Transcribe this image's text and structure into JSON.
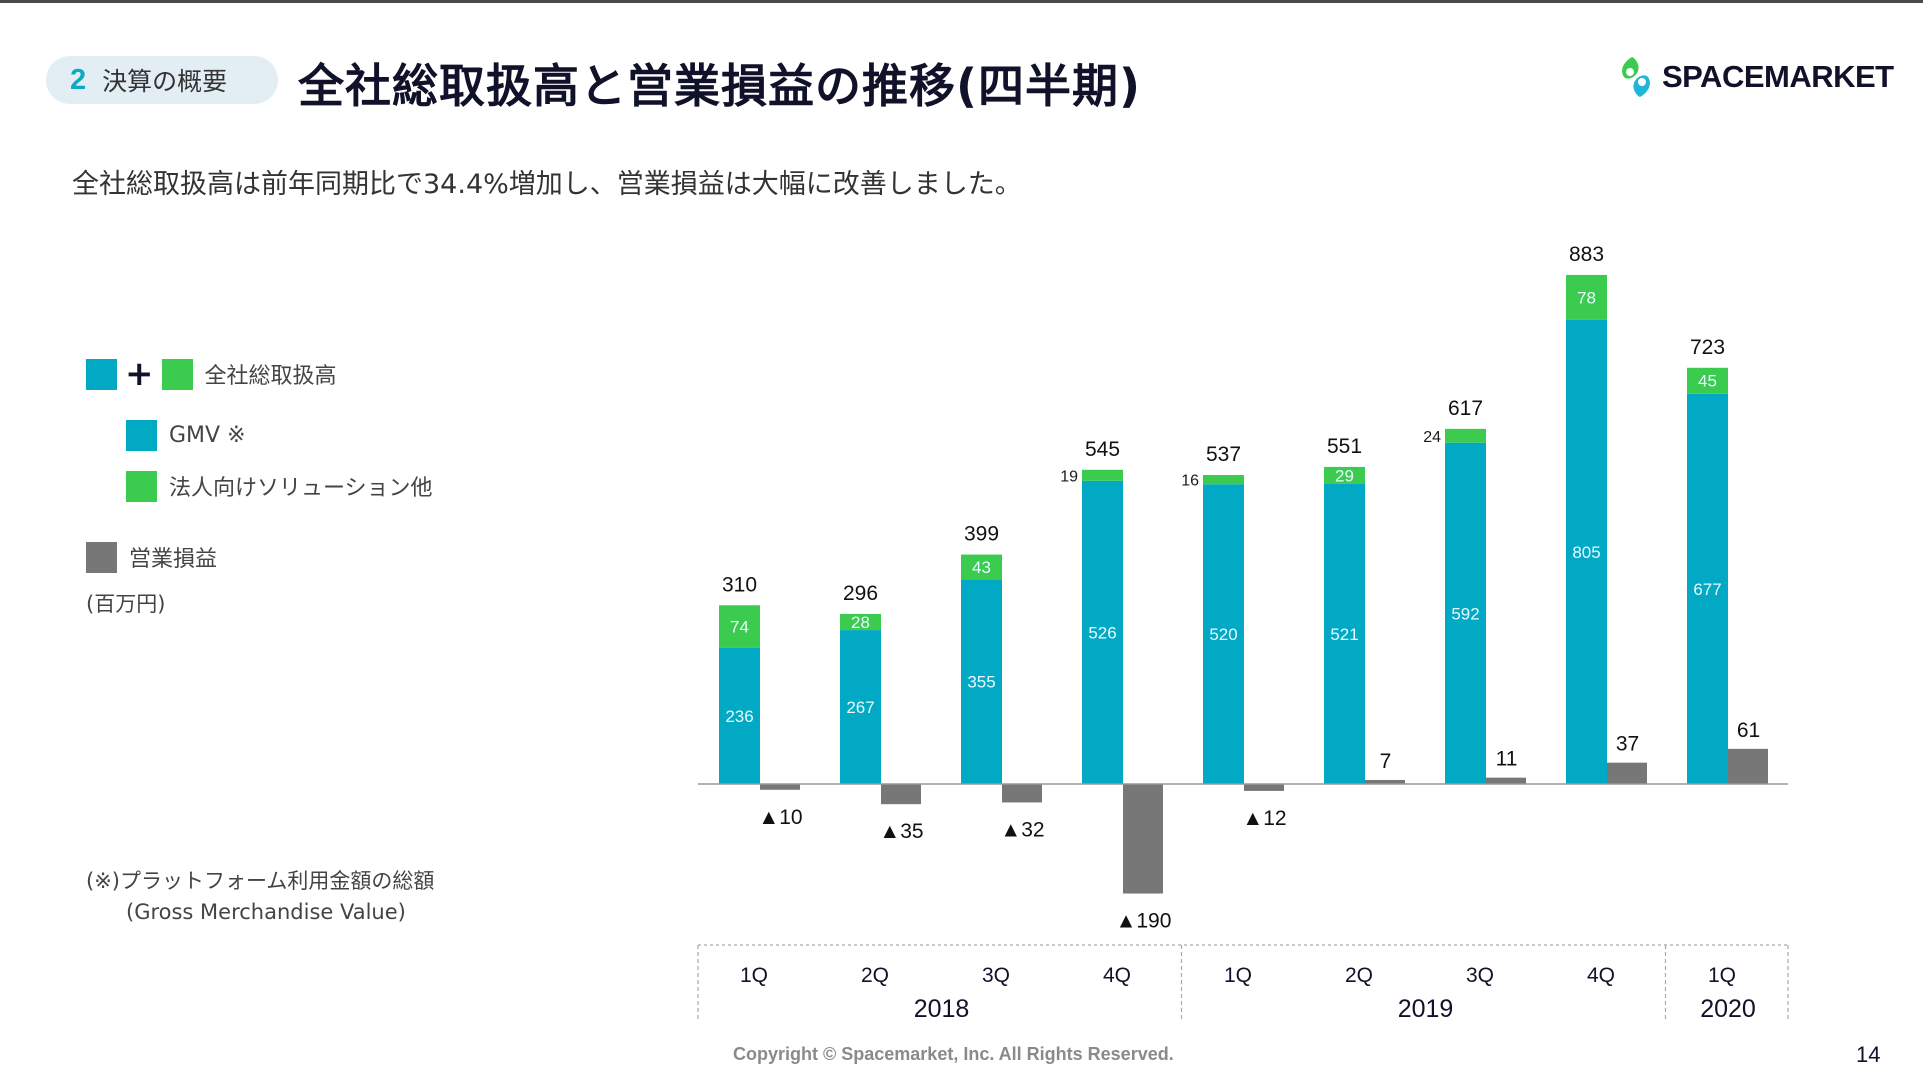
{
  "header": {
    "section_number": "2",
    "section_label": "決算の概要",
    "title": "全社総取扱高と営業損益の推移(四半期)",
    "logo_text": "SPACEMARKET",
    "logo_icon": "spacemarket-logo-icon"
  },
  "subtitle": "全社総取扱高は前年同期比で34.4%増加し、営業損益は大幅に改善しました。",
  "legend": {
    "plus": "+",
    "total_label": "全社総取扱高",
    "gmv_label": "GMV ※",
    "corporate_label": "法人向けソリューション他",
    "operating_label": "営業損益",
    "unit": "(百万円)"
  },
  "footnote": {
    "line1": "(※)プラットフォーム利用金額の総額",
    "line2": "(Gross Merchandise Value)"
  },
  "footer": {
    "copyright": "Copyright © Spacemarket, Inc. All Rights Reserved.",
    "page_number": "14"
  },
  "chart_data": {
    "type": "bar",
    "title": "全社総取扱高と営業損益の推移(四半期)",
    "unit": "百万円",
    "xlabel": "",
    "ylabel": "",
    "grid": false,
    "legend_position": "left",
    "negative_prefix": "▲",
    "categories": [
      "1Q",
      "2Q",
      "3Q",
      "4Q",
      "1Q",
      "2Q",
      "3Q",
      "4Q",
      "1Q"
    ],
    "year_groups": [
      {
        "year": "2018",
        "count": 4
      },
      {
        "year": "2019",
        "count": 4
      },
      {
        "year": "2020",
        "count": 1
      }
    ],
    "series": [
      {
        "name": "GMV ※",
        "stack": "total",
        "color": "#01a9c5",
        "values": [
          236,
          267,
          355,
          526,
          520,
          521,
          592,
          805,
          677
        ]
      },
      {
        "name": "法人向けソリューション他",
        "stack": "total",
        "color": "#3acb4f",
        "values": [
          74,
          28,
          43,
          19,
          16,
          29,
          24,
          78,
          45
        ]
      },
      {
        "name": "営業損益",
        "stack": "operating",
        "color": "#777777",
        "values": [
          -10,
          -35,
          -32,
          -190,
          -12,
          7,
          11,
          37,
          61
        ]
      }
    ],
    "totals": [
      310,
      296,
      399,
      545,
      537,
      551,
      617,
      883,
      723
    ],
    "outside_green_labels": [
      3,
      4,
      6
    ],
    "ylim": [
      -200,
      900
    ]
  }
}
